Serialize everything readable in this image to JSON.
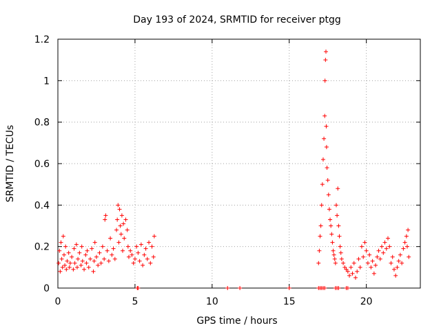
{
  "chart_data": {
    "type": "scatter",
    "title": "Day 193 of 2024, SRMTID for receiver ptgg",
    "xlabel": "GPS time / hours",
    "ylabel": "SRMTID / TECUs",
    "xlim": [
      0,
      23.5
    ],
    "ylim": [
      0,
      1.2
    ],
    "xticks": [
      0,
      5,
      10,
      15,
      20
    ],
    "xtick_labels": [
      "0",
      "5",
      "10",
      "15",
      "20"
    ],
    "yticks": [
      0,
      0.2,
      0.4,
      0.6,
      0.8,
      1.0,
      1.2
    ],
    "ytick_labels": [
      "0",
      "0.2",
      "0.4",
      "0.6",
      "0.8",
      "1",
      "1.2"
    ],
    "grid": true,
    "marker": "+",
    "marker_color": "#ff0000",
    "series": [
      {
        "name": "SRMTID",
        "points": [
          [
            0.05,
            0.12
          ],
          [
            0.1,
            0.18
          ],
          [
            0.15,
            0.08
          ],
          [
            0.2,
            0.22
          ],
          [
            0.25,
            0.14
          ],
          [
            0.3,
            0.1
          ],
          [
            0.35,
            0.25
          ],
          [
            0.4,
            0.16
          ],
          [
            0.45,
            0.11
          ],
          [
            0.5,
            0.2
          ],
          [
            0.55,
            0.09
          ],
          [
            0.6,
            0.13
          ],
          [
            0.7,
            0.17
          ],
          [
            0.75,
            0.1
          ],
          [
            0.8,
            0.12
          ],
          [
            0.9,
            0.15
          ],
          [
            1.0,
            0.09
          ],
          [
            1.05,
            0.19
          ],
          [
            1.1,
            0.12
          ],
          [
            1.2,
            0.21
          ],
          [
            1.25,
            0.1
          ],
          [
            1.3,
            0.14
          ],
          [
            1.4,
            0.17
          ],
          [
            1.5,
            0.11
          ],
          [
            1.55,
            0.2
          ],
          [
            1.6,
            0.13
          ],
          [
            1.7,
            0.09
          ],
          [
            1.8,
            0.16
          ],
          [
            1.85,
            0.12
          ],
          [
            1.9,
            0.18
          ],
          [
            2.0,
            0.1
          ],
          [
            2.1,
            0.14
          ],
          [
            2.2,
            0.19
          ],
          [
            2.3,
            0.08
          ],
          [
            2.35,
            0.13
          ],
          [
            2.4,
            0.22
          ],
          [
            2.5,
            0.15
          ],
          [
            2.6,
            0.11
          ],
          [
            2.7,
            0.17
          ],
          [
            2.8,
            0.12
          ],
          [
            2.9,
            0.2
          ],
          [
            3.0,
            0.14
          ],
          [
            3.05,
            0.33
          ],
          [
            3.1,
            0.35
          ],
          [
            3.2,
            0.18
          ],
          [
            3.3,
            0.13
          ],
          [
            3.4,
            0.24
          ],
          [
            3.5,
            0.16
          ],
          [
            3.6,
            0.19
          ],
          [
            3.7,
            0.14
          ],
          [
            3.8,
            0.28
          ],
          [
            3.85,
            0.33
          ],
          [
            3.9,
            0.4
          ],
          [
            3.95,
            0.22
          ],
          [
            4.0,
            0.38
          ],
          [
            4.05,
            0.3
          ],
          [
            4.1,
            0.26
          ],
          [
            4.15,
            0.35
          ],
          [
            4.2,
            0.18
          ],
          [
            4.25,
            0.31
          ],
          [
            4.3,
            0.24
          ],
          [
            4.4,
            0.33
          ],
          [
            4.5,
            0.28
          ],
          [
            4.55,
            0.2
          ],
          [
            4.6,
            0.15
          ],
          [
            4.7,
            0.18
          ],
          [
            4.8,
            0.16
          ],
          [
            4.9,
            0.12
          ],
          [
            5.0,
            0.14
          ],
          [
            5.1,
            0.2
          ],
          [
            5.2,
            0.17
          ],
          [
            5.3,
            0.13
          ],
          [
            5.4,
            0.21
          ],
          [
            5.5,
            0.11
          ],
          [
            5.6,
            0.16
          ],
          [
            5.7,
            0.19
          ],
          [
            5.8,
            0.14
          ],
          [
            5.9,
            0.22
          ],
          [
            6.0,
            0.12
          ],
          [
            6.1,
            0.2
          ],
          [
            6.2,
            0.15
          ],
          [
            6.25,
            0.25
          ],
          [
            5.15,
            0.0
          ],
          [
            5.2,
            0.0
          ],
          [
            11.0,
            0.0
          ],
          [
            11.8,
            0.0
          ],
          [
            15.0,
            0.0
          ],
          [
            16.9,
            0.0
          ],
          [
            17.0,
            0.0
          ],
          [
            17.1,
            0.0
          ],
          [
            17.2,
            0.0
          ],
          [
            17.3,
            0.0
          ],
          [
            18.0,
            0.0
          ],
          [
            18.1,
            0.0
          ],
          [
            18.2,
            0.0
          ],
          [
            18.7,
            0.0
          ],
          [
            18.8,
            0.0
          ],
          [
            16.9,
            0.12
          ],
          [
            16.95,
            0.18
          ],
          [
            17.0,
            0.25
          ],
          [
            17.05,
            0.3
          ],
          [
            17.1,
            0.4
          ],
          [
            17.15,
            0.5
          ],
          [
            17.2,
            0.62
          ],
          [
            17.25,
            0.72
          ],
          [
            17.3,
            0.83
          ],
          [
            17.32,
            1.0
          ],
          [
            17.35,
            1.1
          ],
          [
            17.38,
            1.14
          ],
          [
            17.4,
            0.78
          ],
          [
            17.42,
            0.68
          ],
          [
            17.45,
            0.58
          ],
          [
            17.5,
            0.52
          ],
          [
            17.55,
            0.45
          ],
          [
            17.6,
            0.38
          ],
          [
            17.65,
            0.33
          ],
          [
            17.7,
            0.3
          ],
          [
            17.75,
            0.26
          ],
          [
            17.8,
            0.22
          ],
          [
            17.85,
            0.18
          ],
          [
            17.9,
            0.16
          ],
          [
            17.95,
            0.14
          ],
          [
            18.0,
            0.12
          ],
          [
            18.05,
            0.4
          ],
          [
            18.1,
            0.35
          ],
          [
            18.15,
            0.48
          ],
          [
            18.2,
            0.3
          ],
          [
            18.25,
            0.25
          ],
          [
            18.3,
            0.2
          ],
          [
            18.35,
            0.17
          ],
          [
            18.4,
            0.14
          ],
          [
            18.5,
            0.12
          ],
          [
            18.6,
            0.1
          ],
          [
            18.7,
            0.09
          ],
          [
            18.8,
            0.08
          ],
          [
            18.9,
            0.06
          ],
          [
            19.0,
            0.1
          ],
          [
            19.1,
            0.07
          ],
          [
            19.2,
            0.12
          ],
          [
            19.3,
            0.05
          ],
          [
            19.4,
            0.08
          ],
          [
            19.5,
            0.14
          ],
          [
            19.6,
            0.1
          ],
          [
            19.7,
            0.2
          ],
          [
            19.8,
            0.15
          ],
          [
            19.9,
            0.22
          ],
          [
            20.0,
            0.18
          ],
          [
            20.1,
            0.12
          ],
          [
            20.2,
            0.16
          ],
          [
            20.3,
            0.1
          ],
          [
            20.4,
            0.13
          ],
          [
            20.5,
            0.07
          ],
          [
            20.6,
            0.11
          ],
          [
            20.7,
            0.15
          ],
          [
            20.8,
            0.18
          ],
          [
            20.9,
            0.14
          ],
          [
            21.0,
            0.2
          ],
          [
            21.1,
            0.17
          ],
          [
            21.2,
            0.22
          ],
          [
            21.3,
            0.19
          ],
          [
            21.4,
            0.24
          ],
          [
            21.5,
            0.2
          ],
          [
            21.6,
            0.12
          ],
          [
            21.7,
            0.15
          ],
          [
            21.8,
            0.09
          ],
          [
            21.9,
            0.06
          ],
          [
            22.0,
            0.1
          ],
          [
            22.1,
            0.13
          ],
          [
            22.2,
            0.16
          ],
          [
            22.3,
            0.12
          ],
          [
            22.4,
            0.19
          ],
          [
            22.5,
            0.22
          ],
          [
            22.6,
            0.25
          ],
          [
            22.65,
            0.2
          ],
          [
            22.7,
            0.28
          ],
          [
            22.75,
            0.15
          ]
        ]
      }
    ]
  }
}
